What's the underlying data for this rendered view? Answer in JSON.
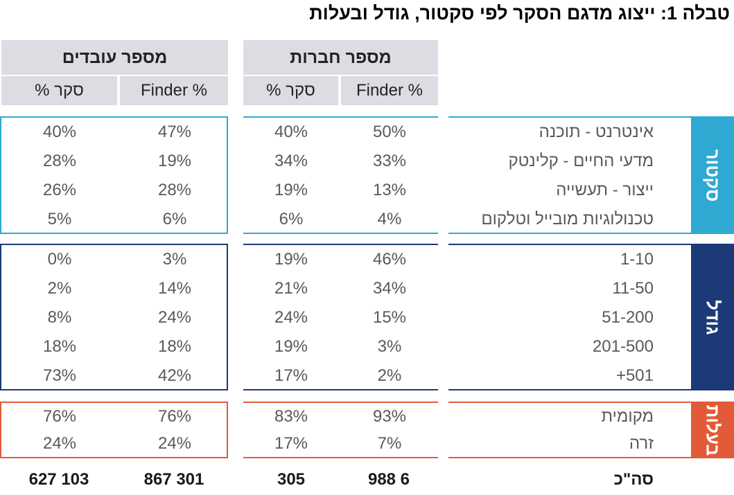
{
  "title": "טבלה 1: ייצוג מדגם הסקר לפי סקטור, גודל ובעלות",
  "headers": {
    "employees": "מספר עובדים",
    "companies": "מספר חברות",
    "survey_pct": "% סקר",
    "finder_pct": "Finder %"
  },
  "groups": {
    "sector": {
      "label": "סקטור",
      "color": "#2fa9d1",
      "rows": [
        {
          "label": "אינטרנט - תוכנה",
          "emp_survey": "40%",
          "emp_finder": "47%",
          "co_survey": "40%",
          "co_finder": "50%"
        },
        {
          "label": "מדעי החיים - קלינטק",
          "emp_survey": "28%",
          "emp_finder": "19%",
          "co_survey": "34%",
          "co_finder": "33%"
        },
        {
          "label": "ייצור - תעשייה",
          "emp_survey": "26%",
          "emp_finder": "28%",
          "co_survey": "19%",
          "co_finder": "13%"
        },
        {
          "label": "טכנולוגיות מובייל וטלקום",
          "emp_survey": "5%",
          "emp_finder": "6%",
          "co_survey": "6%",
          "co_finder": "4%"
        }
      ]
    },
    "size": {
      "label": "גודל",
      "color": "#1c3a78",
      "rows": [
        {
          "label": "1-10",
          "emp_survey": "0%",
          "emp_finder": "3%",
          "co_survey": "19%",
          "co_finder": "46%"
        },
        {
          "label": "11-50",
          "emp_survey": "2%",
          "emp_finder": "14%",
          "co_survey": "21%",
          "co_finder": "34%"
        },
        {
          "label": "51-200",
          "emp_survey": "8%",
          "emp_finder": "24%",
          "co_survey": "24%",
          "co_finder": "15%"
        },
        {
          "label": "201-500",
          "emp_survey": "18%",
          "emp_finder": "18%",
          "co_survey": "19%",
          "co_finder": "3%"
        },
        {
          "label": "501+",
          "emp_survey": "73%",
          "emp_finder": "42%",
          "co_survey": "17%",
          "co_finder": "2%"
        }
      ]
    },
    "ownership": {
      "label": "בעלות",
      "color": "#e25a37",
      "rows": [
        {
          "label": "מקומית",
          "emp_survey": "76%",
          "emp_finder": "76%",
          "co_survey": "83%",
          "co_finder": "93%"
        },
        {
          "label": "זרה",
          "emp_survey": "24%",
          "emp_finder": "24%",
          "co_survey": "17%",
          "co_finder": "7%"
        }
      ]
    }
  },
  "totals": {
    "label": "סה\"כ",
    "emp_survey": "627 103",
    "emp_finder": "867 301",
    "co_survey": "305",
    "co_finder": "988 6"
  }
}
